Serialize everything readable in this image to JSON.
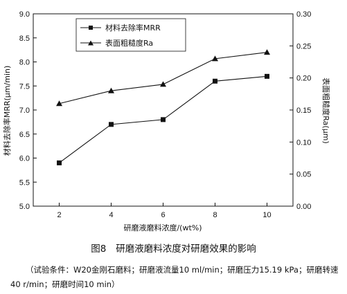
{
  "chart_data": {
    "type": "line",
    "x": [
      2,
      4,
      6,
      8,
      10
    ],
    "xlabel": "研磨液磨料浓度/(wt%)",
    "xlim": [
      1,
      11
    ],
    "xticks": [
      2,
      4,
      6,
      8,
      10
    ],
    "ylabel_left": "材料去除率MRR(μm/min)",
    "ylim_left": [
      5.0,
      9.0
    ],
    "yticks_left": [
      "5.0",
      "5.5",
      "6.0",
      "6.5",
      "7.0",
      "7.5",
      "8.0",
      "8.5",
      "9.0"
    ],
    "ylabel_right": "表面粗糙度Ra(μm)",
    "ylim_right": [
      0.0,
      0.3
    ],
    "yticks_right": [
      "0.00",
      "0.05",
      "0.10",
      "0.15",
      "0.20",
      "0.25",
      "0.30"
    ],
    "grid": false,
    "legend_position": "top-left",
    "series": [
      {
        "name": "材料去除率MRR",
        "marker": "square",
        "axis": "left",
        "values": [
          5.9,
          6.7,
          6.8,
          7.6,
          7.7
        ]
      },
      {
        "name": "表面粗糙度Ra",
        "marker": "triangle",
        "axis": "right",
        "values": [
          0.16,
          0.18,
          0.19,
          0.23,
          0.24
        ]
      }
    ]
  },
  "caption": {
    "figure_number": "图8",
    "title": "研磨液磨料浓度对研磨效果的影响",
    "note": "（试验条件：W20金刚石磨料；研磨液流量10 ml/min；研磨压力15.19 kPa；研磨转速40 r/min；研磨时间10 min）"
  }
}
